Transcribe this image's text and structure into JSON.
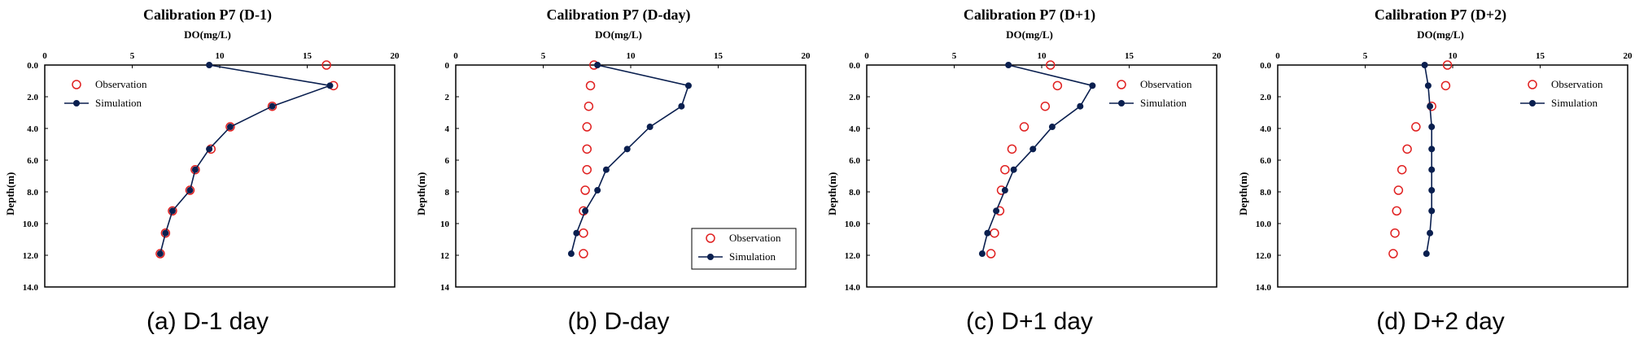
{
  "colors": {
    "observation": "#e02020",
    "simulation": "#0a1f4f",
    "axis": "#000000"
  },
  "chart_data": [
    {
      "type": "line",
      "title": "Calibration P7 (D-1)",
      "xlabel": "DO(mg/L)",
      "ylabel": "Depth(m)",
      "caption": "(a) D-1 day",
      "xlim": [
        0,
        20
      ],
      "ylim": [
        0,
        14
      ],
      "x_ticks": [
        "0",
        "5",
        "10",
        "15",
        "20"
      ],
      "y_ticks": [
        "0.0",
        "2.0",
        "4.0",
        "6.0",
        "8.0",
        "10.0",
        "12.0",
        "14.0"
      ],
      "legend": "top-left",
      "series": [
        {
          "name": "Observation",
          "style": "open-circle",
          "points": [
            [
              16.1,
              0
            ],
            [
              16.5,
              1.3
            ],
            [
              13.0,
              2.6
            ],
            [
              10.6,
              3.9
            ],
            [
              9.5,
              5.3
            ],
            [
              8.6,
              6.6
            ],
            [
              8.3,
              7.9
            ],
            [
              7.3,
              9.2
            ],
            [
              6.9,
              10.6
            ],
            [
              6.6,
              11.9
            ]
          ]
        },
        {
          "name": "Simulation",
          "style": "line-dot",
          "points": [
            [
              9.4,
              0
            ],
            [
              16.3,
              1.3
            ],
            [
              13.0,
              2.6
            ],
            [
              10.6,
              3.9
            ],
            [
              9.4,
              5.3
            ],
            [
              8.6,
              6.6
            ],
            [
              8.3,
              7.9
            ],
            [
              7.3,
              9.2
            ],
            [
              6.9,
              10.6
            ],
            [
              6.6,
              11.9
            ]
          ]
        }
      ]
    },
    {
      "type": "line",
      "title": "Calibration P7 (D-day)",
      "xlabel": "DO(mg/L)",
      "ylabel": "Depth(m)",
      "caption": "(b) D-day",
      "xlim": [
        0,
        20
      ],
      "ylim": [
        0,
        14
      ],
      "x_ticks": [
        "0",
        "5",
        "10",
        "15",
        "20"
      ],
      "y_ticks": [
        "0",
        "2",
        "4",
        "6",
        "8",
        "10",
        "12",
        "14"
      ],
      "legend": "bottom-right",
      "series": [
        {
          "name": "Observation",
          "style": "open-circle",
          "points": [
            [
              7.9,
              0
            ],
            [
              7.7,
              1.3
            ],
            [
              7.6,
              2.6
            ],
            [
              7.5,
              3.9
            ],
            [
              7.5,
              5.3
            ],
            [
              7.5,
              6.6
            ],
            [
              7.4,
              7.9
            ],
            [
              7.3,
              9.2
            ],
            [
              7.3,
              10.6
            ],
            [
              7.3,
              11.9
            ]
          ]
        },
        {
          "name": "Simulation",
          "style": "line-dot",
          "points": [
            [
              8.1,
              0
            ],
            [
              13.3,
              1.3
            ],
            [
              12.9,
              2.6
            ],
            [
              11.1,
              3.9
            ],
            [
              9.8,
              5.3
            ],
            [
              8.6,
              6.6
            ],
            [
              8.1,
              7.9
            ],
            [
              7.4,
              9.2
            ],
            [
              6.9,
              10.6
            ],
            [
              6.6,
              11.9
            ]
          ]
        }
      ]
    },
    {
      "type": "line",
      "title": "Calibration P7 (D+1)",
      "xlabel": "DO(mg/L)",
      "ylabel": "Depth(m)",
      "caption": "(c) D+1 day",
      "xlim": [
        0,
        20
      ],
      "ylim": [
        0,
        14
      ],
      "x_ticks": [
        "0",
        "5",
        "10",
        "15",
        "20"
      ],
      "y_ticks": [
        "0.0",
        "2.0",
        "4.0",
        "6.0",
        "8.0",
        "10.0",
        "12.0",
        "14.0"
      ],
      "legend": "top-right",
      "series": [
        {
          "name": "Observation",
          "style": "open-circle",
          "points": [
            [
              10.5,
              0
            ],
            [
              10.9,
              1.3
            ],
            [
              10.2,
              2.6
            ],
            [
              9.0,
              3.9
            ],
            [
              8.3,
              5.3
            ],
            [
              7.9,
              6.6
            ],
            [
              7.7,
              7.9
            ],
            [
              7.6,
              9.2
            ],
            [
              7.3,
              10.6
            ],
            [
              7.1,
              11.9
            ]
          ]
        },
        {
          "name": "Simulation",
          "style": "line-dot",
          "points": [
            [
              8.1,
              0
            ],
            [
              12.9,
              1.3
            ],
            [
              12.2,
              2.6
            ],
            [
              10.6,
              3.9
            ],
            [
              9.5,
              5.3
            ],
            [
              8.4,
              6.6
            ],
            [
              7.9,
              7.9
            ],
            [
              7.4,
              9.2
            ],
            [
              6.9,
              10.6
            ],
            [
              6.6,
              11.9
            ]
          ]
        }
      ]
    },
    {
      "type": "line",
      "title": "Calibration P7 (D+2)",
      "xlabel": "DO(mg/L)",
      "ylabel": "Depth(m)",
      "caption": "(d) D+2 day",
      "xlim": [
        0,
        20
      ],
      "ylim": [
        0,
        14
      ],
      "x_ticks": [
        "0",
        "5",
        "10",
        "15",
        "20"
      ],
      "y_ticks": [
        "0.0",
        "2.0",
        "4.0",
        "6.0",
        "8.0",
        "10.0",
        "12.0",
        "14.0"
      ],
      "legend": "top-right",
      "series": [
        {
          "name": "Observation",
          "style": "open-circle",
          "points": [
            [
              9.7,
              0
            ],
            [
              9.6,
              1.3
            ],
            [
              8.8,
              2.6
            ],
            [
              7.9,
              3.9
            ],
            [
              7.4,
              5.3
            ],
            [
              7.1,
              6.6
            ],
            [
              6.9,
              7.9
            ],
            [
              6.8,
              9.2
            ],
            [
              6.7,
              10.6
            ],
            [
              6.6,
              11.9
            ]
          ]
        },
        {
          "name": "Simulation",
          "style": "line-dot",
          "points": [
            [
              8.4,
              0
            ],
            [
              8.6,
              1.3
            ],
            [
              8.7,
              2.6
            ],
            [
              8.8,
              3.9
            ],
            [
              8.8,
              5.3
            ],
            [
              8.8,
              6.6
            ],
            [
              8.8,
              7.9
            ],
            [
              8.8,
              9.2
            ],
            [
              8.7,
              10.6
            ],
            [
              8.5,
              11.9
            ]
          ]
        }
      ]
    }
  ]
}
